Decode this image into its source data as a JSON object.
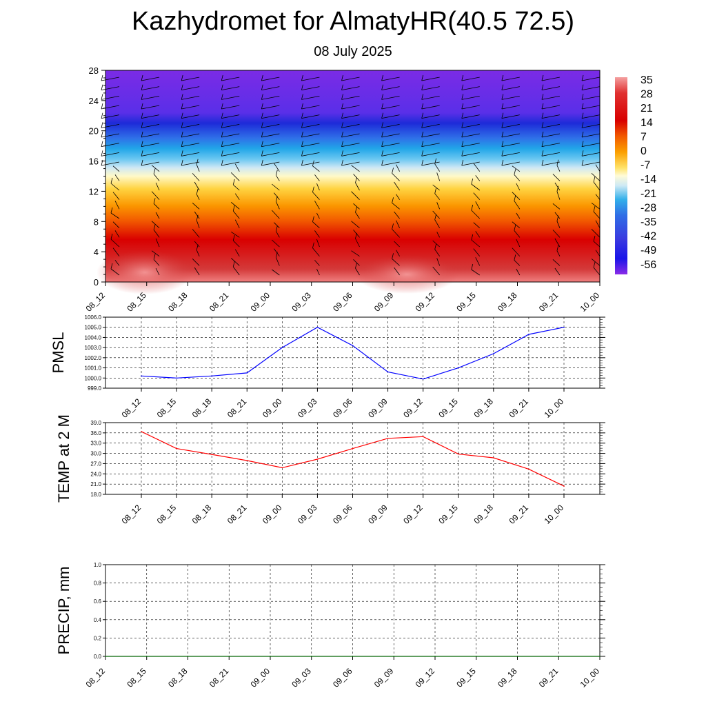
{
  "header": {
    "title": "Kazhydromet for AlmatyHR(40.5 72.5)",
    "subtitle": "08 July 2025"
  },
  "colors": {
    "pressure_line": "#0000ff",
    "temp_line": "#ff0000",
    "precip_line": "#006400",
    "grid": "#000000"
  },
  "chart_data": [
    {
      "type": "heatmap",
      "title": "",
      "xlabel": "",
      "ylabel": "",
      "x": [
        "08_12",
        "08_15",
        "08_18",
        "08_21",
        "09_00",
        "09_03",
        "09_06",
        "09_09",
        "09_12",
        "09_15",
        "09_18",
        "09_21",
        "10_00"
      ],
      "y_ticks": [
        0,
        4,
        8,
        12,
        16,
        20,
        24,
        28
      ],
      "ylim": [
        0,
        28
      ],
      "colorbar": {
        "labels": [
          "35",
          "28",
          "21",
          "14",
          "7",
          "0",
          "-7",
          "-14",
          "-21",
          "-28",
          "-35",
          "-42",
          "-49",
          "-56"
        ],
        "range": [
          -62,
          38
        ],
        "colormap": "blue-cyan-white-yellow-orange-red"
      },
      "overlay": "wind barbs",
      "grid": false
    },
    {
      "type": "line",
      "ylabel": "PMSL",
      "x": [
        "08_12",
        "08_15",
        "08_18",
        "08_21",
        "09_00",
        "09_03",
        "09_06",
        "09_09",
        "09_12",
        "09_15",
        "09_18",
        "09_21",
        "10_00"
      ],
      "series": [
        {
          "values": [
            1000.2,
            1000.0,
            1000.2,
            1000.5,
            1003.0,
            1005.0,
            1003.2,
            1000.6,
            999.9,
            1001.0,
            1002.4,
            1004.3,
            1005.0
          ]
        }
      ],
      "y_ticks": [
        "999.0",
        "1000.0",
        "1001.0",
        "1002.0",
        "1003.0",
        "1004.0",
        "1005.0",
        "1006.0"
      ],
      "ylim": [
        999,
        1006
      ],
      "grid": true
    },
    {
      "type": "line",
      "ylabel": "TEMP at 2 M",
      "x": [
        "08_12",
        "08_15",
        "08_18",
        "08_21",
        "09_00",
        "09_03",
        "09_06",
        "09_09",
        "09_12",
        "09_15",
        "09_18",
        "09_21",
        "10_00"
      ],
      "series": [
        {
          "values": [
            36.4,
            31.4,
            29.7,
            27.9,
            25.8,
            28.3,
            31.4,
            34.4,
            34.9,
            29.8,
            28.7,
            25.4,
            20.4
          ]
        }
      ],
      "y_ticks": [
        "18.0",
        "21.0",
        "24.0",
        "27.0",
        "30.0",
        "33.0",
        "36.0",
        "39.0"
      ],
      "ylim": [
        18,
        39
      ],
      "grid": true
    },
    {
      "type": "line",
      "ylabel": "PRECIP, mm",
      "x": [
        "08_12",
        "08_15",
        "08_18",
        "08_21",
        "09_00",
        "09_03",
        "09_06",
        "09_09",
        "09_12",
        "09_15",
        "09_18",
        "09_21",
        "10_00"
      ],
      "series": [
        {
          "values": [
            0,
            0,
            0,
            0,
            0,
            0,
            0,
            0,
            0,
            0,
            0,
            0,
            0
          ]
        }
      ],
      "y_ticks": [
        "0.0",
        "0.2",
        "0.4",
        "0.6",
        "0.8",
        "1.0"
      ],
      "ylim": [
        0,
        1
      ],
      "grid": true
    }
  ]
}
